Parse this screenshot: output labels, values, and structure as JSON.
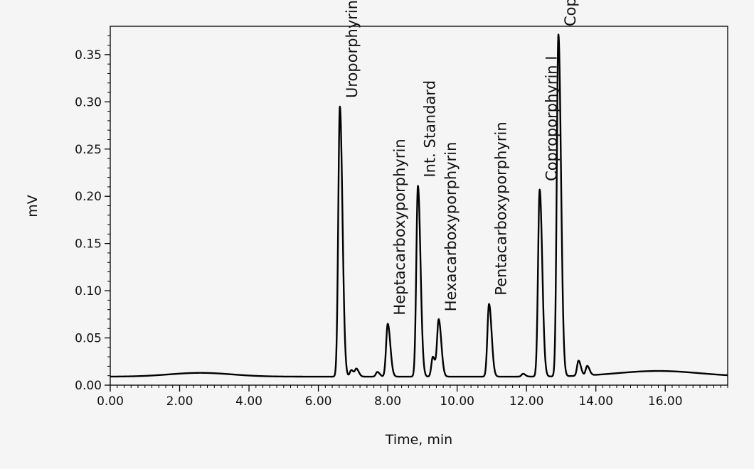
{
  "chart_data": {
    "type": "line",
    "title": "",
    "xlabel": "Time, min",
    "ylabel": "mV",
    "xlim": [
      0,
      17.8
    ],
    "ylim": [
      0,
      0.38
    ],
    "grid": false,
    "legend": "none",
    "line_color": "#000000",
    "x_ticks": [
      "0.00",
      "2.00",
      "4.00",
      "6.00",
      "8.00",
      "10.00",
      "12.00",
      "14.00",
      "16.00"
    ],
    "y_ticks": [
      "0.00",
      "0.05",
      "0.10",
      "0.15",
      "0.20",
      "0.25",
      "0.30",
      "0.35"
    ],
    "baseline": 0.009,
    "humps": [
      {
        "x": 2.6,
        "height": 0.004,
        "width": 0.9
      },
      {
        "x": 15.8,
        "height": 0.006,
        "width": 1.2
      }
    ],
    "peaks": [
      {
        "name": "Uroporphyrin",
        "x": 6.62,
        "y": 0.295
      },
      {
        "name": "Heptacarboxyporphyrin",
        "x": 8.0,
        "y": 0.065
      },
      {
        "name": "Int. Standard",
        "x": 8.87,
        "y": 0.211
      },
      {
        "name": "Hexacarboxyporphyrin",
        "x": 9.47,
        "y": 0.069
      },
      {
        "name": "Pentacarboxyporphyrin",
        "x": 10.92,
        "y": 0.086
      },
      {
        "name": "Coproporphyrin I",
        "x": 12.38,
        "y": 0.207
      },
      {
        "name": "Coproporphyrin III",
        "x": 12.92,
        "y": 0.371
      }
    ],
    "minor_peaks": [
      {
        "x": 6.95,
        "y": 0.016
      },
      {
        "x": 7.1,
        "y": 0.017
      },
      {
        "x": 7.7,
        "y": 0.014
      },
      {
        "x": 9.3,
        "y": 0.03
      },
      {
        "x": 11.9,
        "y": 0.012
      },
      {
        "x": 13.5,
        "y": 0.025
      },
      {
        "x": 13.75,
        "y": 0.019
      }
    ]
  }
}
